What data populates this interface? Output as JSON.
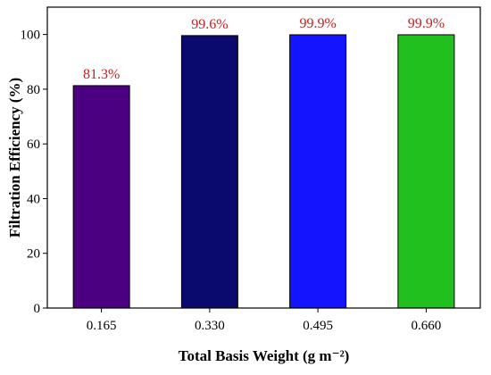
{
  "colors": {
    "bars": [
      "#4b0082",
      "#0a0a6e",
      "#1414ff",
      "#22c01e"
    ],
    "data_label": "#c81e1e",
    "axis": "#000000"
  },
  "chart_data": {
    "type": "bar",
    "categories": [
      "0.165",
      "0.330",
      "0.495",
      "0.660"
    ],
    "values": [
      81.3,
      99.6,
      99.9,
      99.9
    ],
    "data_labels": [
      "81.3%",
      "99.6%",
      "99.9%",
      "99.9%"
    ],
    "ylim": [
      0,
      110
    ],
    "yticks": [
      "0",
      "20",
      "40",
      "60",
      "80",
      "100"
    ],
    "xlabel": "Total Basis Weight (g m⁻²)",
    "ylabel": "Filtration Efficiency (%)",
    "title": "",
    "grid": false,
    "legend": false
  }
}
